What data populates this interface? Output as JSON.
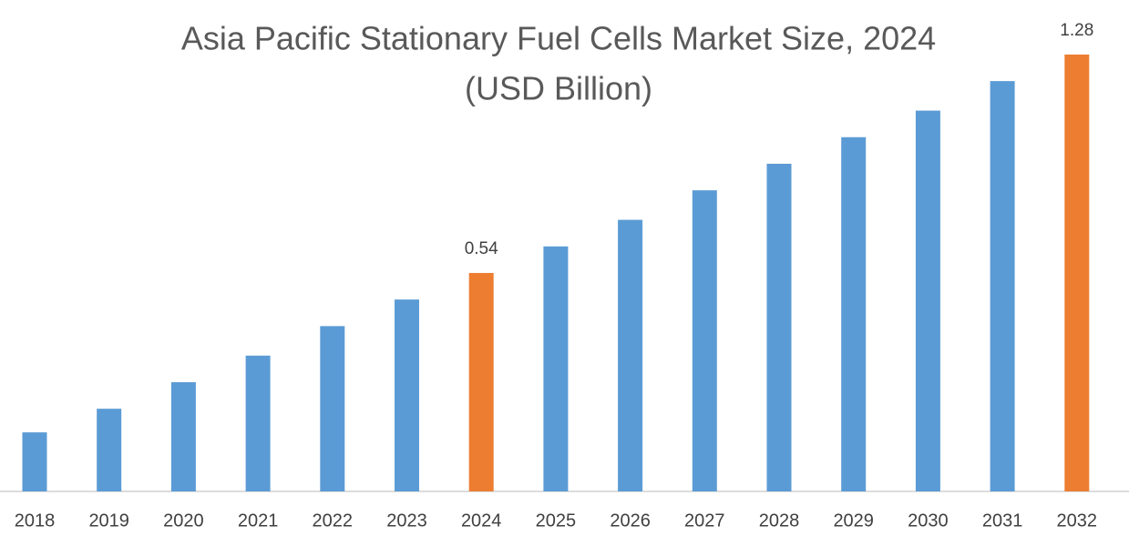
{
  "chart_data": {
    "type": "bar",
    "title": [
      "Asia Pacific Stationary Fuel Cells Market Size, 2024",
      "(USD Billion)"
    ],
    "categories": [
      "2018",
      "2019",
      "2020",
      "2021",
      "2022",
      "2023",
      "2024",
      "2025",
      "2026",
      "2027",
      "2028",
      "2029",
      "2030",
      "2031",
      "2032"
    ],
    "values": [
      0.0,
      0.08,
      0.17,
      0.26,
      0.36,
      0.45,
      0.54,
      0.63,
      0.72,
      0.82,
      0.91,
      1.0,
      1.09,
      1.19,
      1.28
    ],
    "value_labels": [
      null,
      null,
      null,
      null,
      null,
      null,
      "0.54",
      null,
      null,
      null,
      null,
      null,
      null,
      null,
      "1.28"
    ],
    "colors": [
      "#5b9bd5",
      "#5b9bd5",
      "#5b9bd5",
      "#5b9bd5",
      "#5b9bd5",
      "#5b9bd5",
      "#ed7d31",
      "#5b9bd5",
      "#5b9bd5",
      "#5b9bd5",
      "#5b9bd5",
      "#5b9bd5",
      "#5b9bd5",
      "#5b9bd5",
      "#ed7d31"
    ],
    "ylim": [
      -0.2,
      1.4
    ]
  }
}
